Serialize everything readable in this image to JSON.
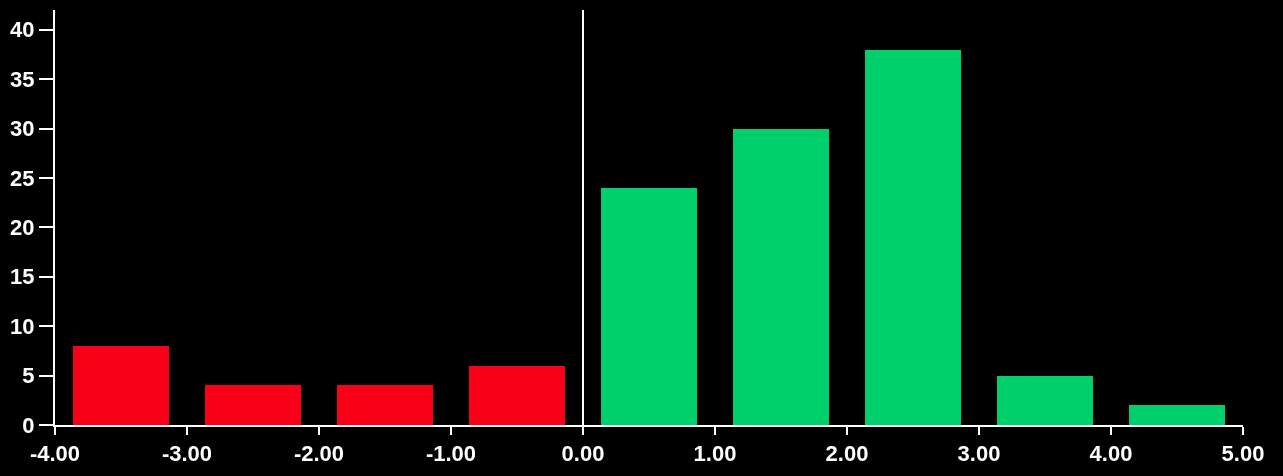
{
  "chart_data": {
    "type": "histogram",
    "bins": [
      -4,
      -3,
      -2,
      -1,
      0,
      1,
      2,
      3,
      4,
      5
    ],
    "values": [
      8,
      4,
      4,
      6,
      24,
      30,
      38,
      5,
      2
    ],
    "colors": [
      "#f70018",
      "#f70018",
      "#f70018",
      "#f70018",
      "#00d06b",
      "#00d06b",
      "#00d06b",
      "#00d06b",
      "#00d06b"
    ],
    "xlim": [
      -4,
      5
    ],
    "xticks": [
      {
        "value": -4,
        "label": "-4.00"
      },
      {
        "value": -3,
        "label": "-3.00"
      },
      {
        "value": -2,
        "label": "-2.00"
      },
      {
        "value": -1,
        "label": "-1.00"
      },
      {
        "value": 0,
        "label": "0.00"
      },
      {
        "value": 1,
        "label": "1.00"
      },
      {
        "value": 2,
        "label": "2.00"
      },
      {
        "value": 3,
        "label": "3.00"
      },
      {
        "value": 4,
        "label": "4.00"
      },
      {
        "value": 5,
        "label": "5.00"
      }
    ],
    "ylim": [
      0,
      42
    ],
    "yticks": [
      0,
      5,
      10,
      15,
      20,
      25,
      30,
      35,
      40
    ],
    "ref_lines": [
      {
        "axis": "x",
        "value": 0,
        "color": "#ffffff",
        "line_style": "solid"
      }
    ],
    "grid": false
  }
}
